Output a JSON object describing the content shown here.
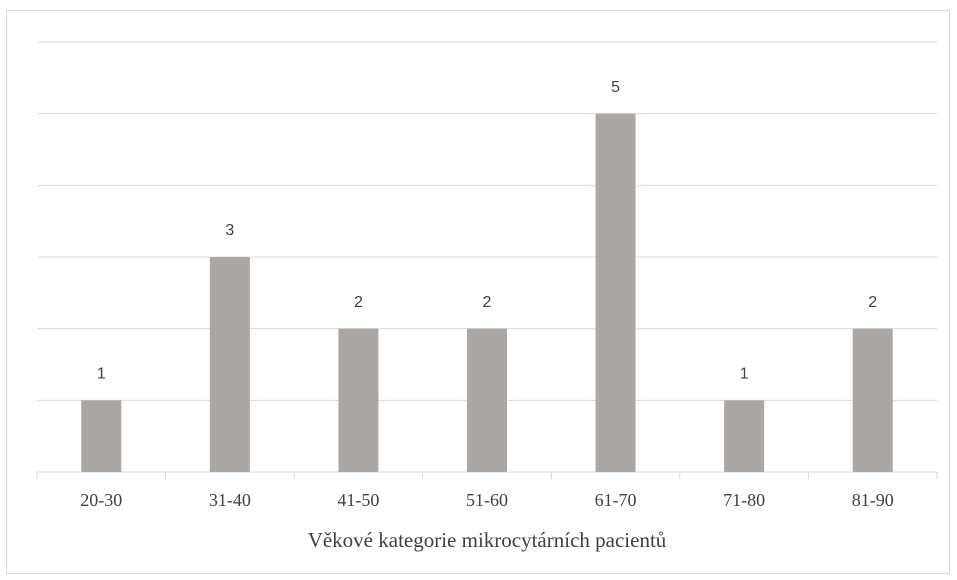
{
  "chart_data": {
    "type": "bar",
    "x_label": "Věkové kategorie mikrocytárních pacientů",
    "categories": [
      "20-30",
      "31-40",
      "41-50",
      "51-60",
      "61-70",
      "71-80",
      "81-90"
    ],
    "values": [
      1,
      3,
      2,
      2,
      5,
      1,
      2
    ],
    "color": "#aba7a4",
    "ylim": [
      0,
      6
    ],
    "yticks": [
      0,
      1,
      2,
      3,
      4,
      5,
      6
    ],
    "grid": true
  }
}
